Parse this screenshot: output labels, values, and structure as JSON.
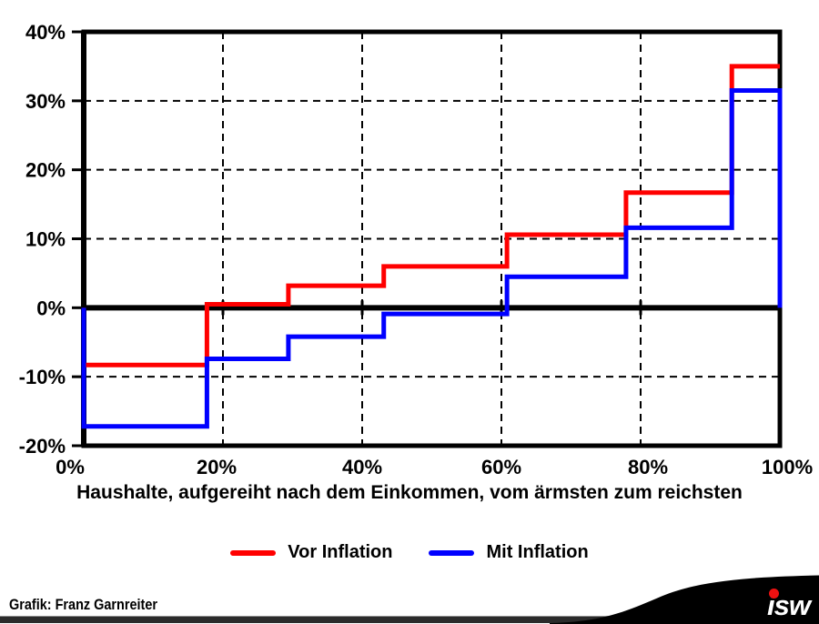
{
  "chart_data": {
    "type": "step-line",
    "title": "",
    "x_axis": {
      "title": "Haushalte, aufgereiht nach dem Einkommen, vom ärmsten zum reichsten",
      "range": [
        0,
        100
      ],
      "ticks": [
        {
          "value": 0,
          "label": "0%"
        },
        {
          "value": 20,
          "label": "20%"
        },
        {
          "value": 40,
          "label": "40%"
        },
        {
          "value": 60,
          "label": "60%"
        },
        {
          "value": 80,
          "label": "80%"
        },
        {
          "value": 100,
          "label": "100%"
        }
      ],
      "gridlines": [
        20,
        40,
        60,
        80
      ]
    },
    "y_axis": {
      "title": "",
      "range": [
        -20,
        40
      ],
      "ticks": [
        {
          "value": 40,
          "label": "40%"
        },
        {
          "value": 30,
          "label": "30%"
        },
        {
          "value": 20,
          "label": "20%"
        },
        {
          "value": 10,
          "label": "10%"
        },
        {
          "value": 0,
          "label": "0%"
        },
        {
          "value": -10,
          "label": "-10%"
        },
        {
          "value": -20,
          "label": "-20%"
        }
      ],
      "gridlines": [
        30,
        20,
        10,
        -10
      ],
      "zero_axis": 0
    },
    "grid": "dashed",
    "legend_position": "bottom-center",
    "x_breaks": [
      0,
      17.7,
      29.4,
      43.1,
      60.8,
      77.9,
      93.1,
      100
    ],
    "series": [
      {
        "name": "Vor Inflation",
        "color": "#ff0000",
        "values": [
          -8.3,
          0.5,
          3.2,
          6.0,
          10.6,
          16.7,
          35.0
        ],
        "start_vertical_from": 0,
        "end_vertical_to": null
      },
      {
        "name": "Mit Inflation",
        "color": "#0000ff",
        "values": [
          -17.2,
          -7.4,
          -4.2,
          -0.9,
          4.5,
          11.6,
          31.5
        ],
        "start_vertical_from": 0,
        "end_vertical_to": 0
      }
    ]
  },
  "legend": {
    "items": [
      {
        "label": "Vor Inflation",
        "color": "#ff0000"
      },
      {
        "label": "Mit Inflation",
        "color": "#0000ff"
      }
    ]
  },
  "footer": {
    "credit": "Grafik: Franz Garnreiter"
  },
  "logo": {
    "text": "isw",
    "text_color": "#ffffff",
    "dot_color": "#ee1111",
    "swoosh_color": "#000000"
  },
  "bottom_bar": {
    "color": "#2b2b2b",
    "edge_color": "#8c8c8c"
  }
}
